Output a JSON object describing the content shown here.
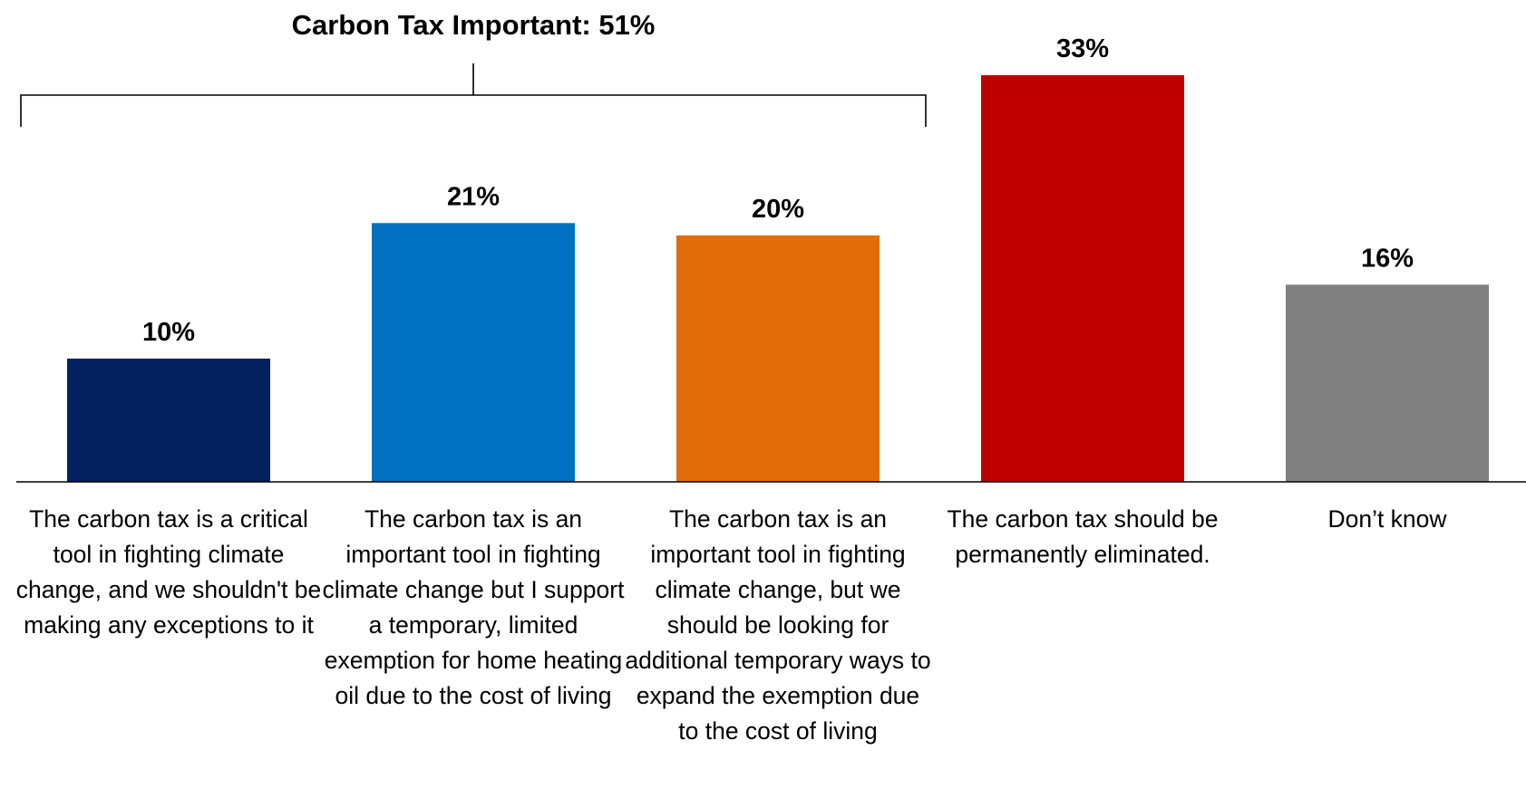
{
  "chart_data": {
    "type": "bar",
    "categories": [
      "The carbon tax is a critical tool in fighting climate change, and we shouldn't be making any exceptions to it",
      "The carbon tax is an important tool in fighting climate change but I support a temporary, limited exemption for home heating oil due to the cost of living",
      "The carbon tax is an important tool in fighting climate change, but we should be looking for additional temporary ways to expand the exemption due to the cost of living",
      "The carbon tax should be permanently eliminated.",
      "Don’t know"
    ],
    "values": [
      10,
      21,
      20,
      33,
      16
    ],
    "data_labels": [
      "10%",
      "21%",
      "20%",
      "33%",
      "16%"
    ],
    "colors": [
      "#03215C",
      "#0070C0",
      "#E36C0A",
      "#C00000",
      "#808080"
    ],
    "ylim": [
      0,
      33
    ],
    "grid": false,
    "legend": "none",
    "bracket": {
      "label": "Carbon Tax Important: 51%",
      "spans_categories": [
        0,
        1,
        2
      ]
    }
  }
}
